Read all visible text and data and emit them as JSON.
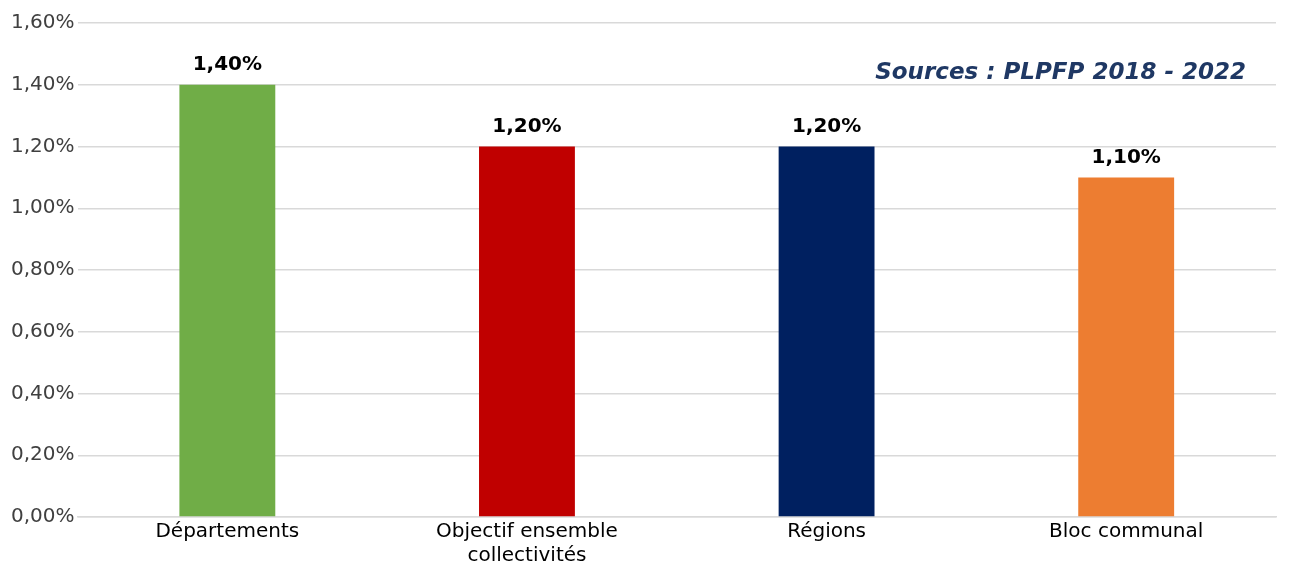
{
  "chart_data": {
    "type": "bar",
    "categories": [
      "Départements",
      "Objectif ensemble collectivités",
      "Régions",
      "Bloc communal"
    ],
    "values": [
      1.4,
      1.2,
      1.2,
      1.1
    ],
    "colors": [
      "#70ad47",
      "#c00000",
      "#002060",
      "#ed7d31"
    ],
    "value_labels": [
      "1,40%",
      "1,20%",
      "1,20%",
      "1,10%"
    ],
    "ylim": [
      0,
      1.6
    ],
    "yticks": [
      {
        "value": 0,
        "label": "0,00%"
      },
      {
        "value": 0.2,
        "label": "0,20%"
      },
      {
        "value": 0.4,
        "label": "0,40%"
      },
      {
        "value": 0.6,
        "label": "0,60%"
      },
      {
        "value": 0.8,
        "label": "0,80%"
      },
      {
        "value": 1,
        "label": "1,00%"
      },
      {
        "value": 1.2,
        "label": "1,20%"
      },
      {
        "value": 1.4,
        "label": "1,40%"
      },
      {
        "value": 1.6,
        "label": "1,60%"
      }
    ],
    "grid": "y",
    "legend": false,
    "annotations": [
      "Sources : PLPFP 2018 - 2022"
    ]
  }
}
